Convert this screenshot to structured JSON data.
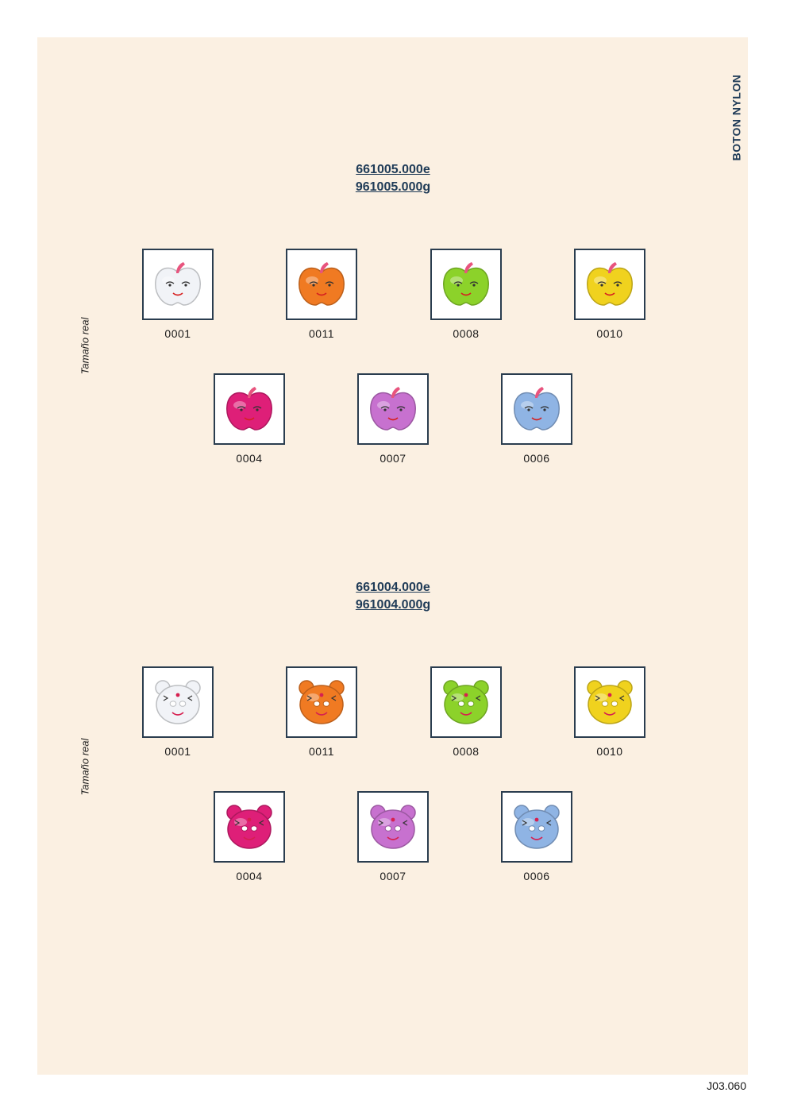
{
  "side_title": "BOTON NYLON",
  "page_number": "J03.060",
  "colors": {
    "0001": "#f1f3f7",
    "0011": "#f07a22",
    "0008": "#8cd22a",
    "0010": "#f0d21e",
    "0004": "#de1f78",
    "0007": "#c771cf",
    "0006": "#8fb4e4"
  },
  "sections": [
    {
      "codes": [
        "661005.000e",
        "961005.000g"
      ],
      "size_note": "Tamaño real",
      "shape": "apple",
      "items": [
        {
          "code": "0001",
          "icon": "apple-face-button-icon"
        },
        {
          "code": "0011",
          "icon": "apple-face-button-icon"
        },
        {
          "code": "0008",
          "icon": "apple-face-button-icon"
        },
        {
          "code": "0010",
          "icon": "apple-face-button-icon"
        },
        {
          "code": "0004",
          "icon": "apple-face-button-icon"
        },
        {
          "code": "0007",
          "icon": "apple-face-button-icon"
        },
        {
          "code": "0006",
          "icon": "apple-face-button-icon"
        }
      ]
    },
    {
      "codes": [
        "661004.000e",
        "961004.000g"
      ],
      "size_note": "Tamaño real",
      "shape": "bear",
      "items": [
        {
          "code": "0001",
          "icon": "bear-face-button-icon"
        },
        {
          "code": "0011",
          "icon": "bear-face-button-icon"
        },
        {
          "code": "0008",
          "icon": "bear-face-button-icon"
        },
        {
          "code": "0010",
          "icon": "bear-face-button-icon"
        },
        {
          "code": "0004",
          "icon": "bear-face-button-icon"
        },
        {
          "code": "0007",
          "icon": "bear-face-button-icon"
        },
        {
          "code": "0006",
          "icon": "bear-face-button-icon"
        }
      ]
    }
  ]
}
